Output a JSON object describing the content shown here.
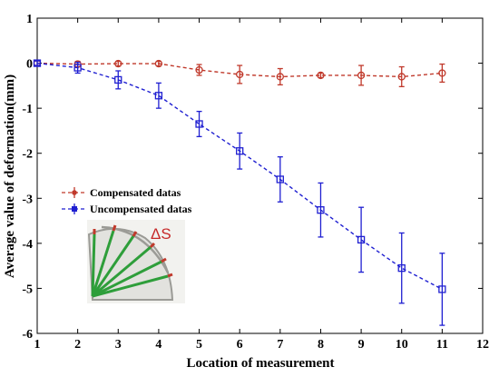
{
  "chart_data": {
    "type": "line",
    "title": "",
    "xlabel": "Location of measurement",
    "ylabel": "Average value of deformation(mm)",
    "xlim": [
      1,
      12
    ],
    "ylim": [
      -6,
      1
    ],
    "x_ticks": [
      "1",
      "2",
      "3",
      "4",
      "5",
      "6",
      "7",
      "8",
      "9",
      "10",
      "11",
      "12"
    ],
    "y_ticks": [
      "1",
      "0",
      "-1",
      "-2",
      "-3",
      "-4",
      "-5",
      "-6"
    ],
    "grid": false,
    "legend_position": "middle-left",
    "series": [
      {
        "name": "Compensated datas",
        "color": "#c0392b",
        "line_style": "dashed",
        "marker": "circle",
        "x": [
          1,
          2,
          3,
          4,
          5,
          6,
          7,
          8,
          9,
          10,
          11
        ],
        "y": [
          0,
          -0.02,
          -0.01,
          -0.01,
          -0.15,
          -0.25,
          -0.3,
          -0.27,
          -0.27,
          -0.3,
          -0.22
        ],
        "error": [
          0.05,
          0.06,
          0.05,
          0.05,
          0.12,
          0.2,
          0.18,
          0.05,
          0.22,
          0.22,
          0.2
        ]
      },
      {
        "name": "Uncompensated datas",
        "color": "#1f1fd1",
        "line_style": "dashed",
        "marker": "square",
        "x": [
          1,
          2,
          3,
          4,
          5,
          6,
          7,
          8,
          9,
          10,
          11
        ],
        "y": [
          0,
          -0.1,
          -0.37,
          -0.72,
          -1.35,
          -1.95,
          -2.58,
          -3.26,
          -3.92,
          -4.55,
          -5.02
        ],
        "error": [
          0.05,
          0.12,
          0.2,
          0.28,
          0.28,
          0.4,
          0.5,
          0.6,
          0.72,
          0.78,
          0.8
        ]
      }
    ],
    "annotations": [
      {
        "text": "ΔS",
        "color": "#c62828"
      }
    ]
  },
  "inset": {
    "name": "sensor-fan-diagram",
    "label": "ΔS",
    "ray_color": "#2e9e3a",
    "tip_color": "#c0392b"
  }
}
